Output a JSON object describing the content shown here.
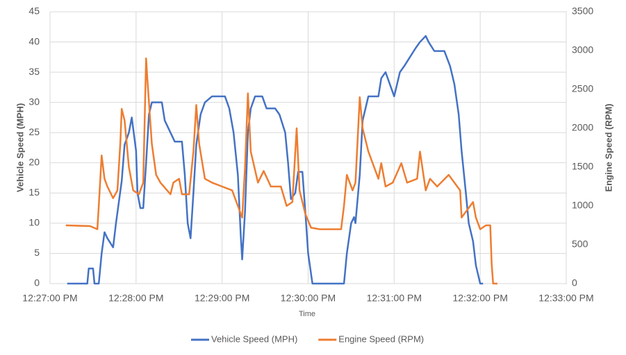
{
  "chart_data": {
    "type": "line",
    "x_label": "Time",
    "y_label": "Vehicle Speed (MPH)",
    "y2_label": "Engine Speed (RPM)",
    "xlim": [
      "12:27:00 PM",
      "12:33:00 PM"
    ],
    "xticks": [
      "12:27:00 PM",
      "12:28:00 PM",
      "12:29:00 PM",
      "12:30:00 PM",
      "12:31:00 PM",
      "12:32:00 PM",
      "12:33:00 PM"
    ],
    "ylim": [
      0,
      45
    ],
    "yticks": [
      0,
      5,
      10,
      15,
      20,
      25,
      30,
      35,
      40,
      45
    ],
    "y2lim": [
      0,
      3500
    ],
    "y2ticks": [
      0,
      500,
      1000,
      1500,
      2000,
      2500,
      3000,
      3500
    ],
    "grid": true,
    "legend": "bottom",
    "series": [
      {
        "name": "Vehicle Speed (MPH)",
        "color": "#4472c4",
        "x": [
          "12:27:12 PM",
          "12:27:26 PM",
          "12:27:27 PM",
          "12:27:30 PM",
          "12:27:31 PM",
          "12:27:34 PM",
          "12:27:36 PM",
          "12:27:38 PM",
          "12:27:40 PM",
          "12:27:44 PM",
          "12:27:46 PM",
          "12:27:50 PM",
          "12:27:52 PM",
          "12:27:55 PM",
          "12:27:57 PM",
          "12:28:00 PM",
          "12:28:01 PM",
          "12:28:03 PM",
          "12:28:05 PM",
          "12:28:07 PM",
          "12:28:09 PM",
          "12:28:11 PM",
          "12:28:18 PM",
          "12:28:20 PM",
          "12:28:24 PM",
          "12:28:27 PM",
          "12:28:32 PM",
          "12:28:34 PM",
          "12:28:36 PM",
          "12:28:38 PM",
          "12:28:40 PM",
          "12:28:42 PM",
          "12:28:45 PM",
          "12:28:48 PM",
          "12:28:53 PM",
          "12:29:02 PM",
          "12:29:05 PM",
          "12:29:08 PM",
          "12:29:11 PM",
          "12:29:13 PM",
          "12:29:14 PM",
          "12:29:16 PM",
          "12:29:18 PM",
          "12:29:20 PM",
          "12:29:23 PM",
          "12:29:28 PM",
          "12:29:31 PM",
          "12:29:37 PM",
          "12:29:40 PM",
          "12:29:44 PM",
          "12:29:46 PM",
          "12:29:48 PM",
          "12:29:51 PM",
          "12:29:53 PM",
          "12:29:56 PM",
          "12:29:58 PM",
          "12:30:00 PM",
          "12:30:03 PM",
          "12:30:25 PM",
          "12:30:27 PM",
          "12:30:30 PM",
          "12:30:32 PM",
          "12:30:33 PM",
          "12:30:36 PM",
          "12:30:38 PM",
          "12:30:42 PM",
          "12:30:49 PM",
          "12:30:51 PM",
          "12:30:54 PM",
          "12:30:57 PM",
          "12:31:00 PM",
          "12:31:04 PM",
          "12:31:07 PM",
          "12:31:11 PM",
          "12:31:15 PM",
          "12:31:18 PM",
          "12:31:22 PM",
          "12:31:24 PM",
          "12:31:28 PM",
          "12:31:35 PM",
          "12:31:39 PM",
          "12:31:42 PM",
          "12:31:45 PM",
          "12:31:47 PM",
          "12:31:50 PM",
          "12:31:52 PM",
          "12:31:55 PM",
          "12:31:57 PM",
          "12:32:00 PM",
          "12:32:02 PM"
        ],
        "values": [
          0,
          0,
          2.5,
          2.5,
          0,
          0,
          5,
          8.5,
          7.5,
          6,
          10,
          17,
          23,
          25,
          27.5,
          22,
          15,
          12.5,
          12.5,
          20,
          28,
          30,
          30,
          27,
          25,
          23.5,
          23.5,
          18,
          10,
          7.5,
          15,
          23,
          28,
          30,
          31,
          31,
          29,
          25,
          18,
          8,
          4,
          12,
          25,
          29,
          31,
          31,
          29,
          29,
          28,
          25,
          20,
          14,
          15,
          18.5,
          18.5,
          12,
          5,
          0,
          0,
          5,
          10,
          11,
          10,
          18,
          27,
          31,
          31,
          34,
          35,
          33,
          31,
          35,
          36,
          37.5,
          39,
          40,
          41,
          40,
          38.5,
          38.5,
          36,
          33,
          28,
          22,
          15,
          10,
          7,
          3,
          0,
          0
        ]
      },
      {
        "name": "Engine Speed (RPM)",
        "color": "#ed7d31",
        "axis": "y2",
        "x": [
          "12:27:11 PM",
          "12:27:28 PM",
          "12:27:33 PM",
          "12:27:34 PM",
          "12:27:36 PM",
          "12:27:38 PM",
          "12:27:40 PM",
          "12:27:44 PM",
          "12:27:47 PM",
          "12:27:49 PM",
          "12:27:50 PM",
          "12:27:52 PM",
          "12:27:55 PM",
          "12:27:58 PM",
          "12:28:02 PM",
          "12:28:05 PM",
          "12:28:07 PM",
          "12:28:08 PM",
          "12:28:11 PM",
          "12:28:14 PM",
          "12:28:17 PM",
          "12:28:24 PM",
          "12:28:26 PM",
          "12:28:30 PM",
          "12:28:32 PM",
          "12:28:37 PM",
          "12:28:40 PM",
          "12:28:42 PM",
          "12:28:44 PM",
          "12:28:48 PM",
          "12:28:53 PM",
          "12:29:00 PM",
          "12:29:07 PM",
          "12:29:11 PM",
          "12:29:14 PM",
          "12:29:16 PM",
          "12:29:18 PM",
          "12:29:20 PM",
          "12:29:25 PM",
          "12:29:29 PM",
          "12:29:34 PM",
          "12:29:41 PM",
          "12:29:45 PM",
          "12:29:49 PM",
          "12:29:52 PM",
          "12:29:54 PM",
          "12:29:58 PM",
          "12:30:02 PM",
          "12:30:08 PM",
          "12:30:23 PM",
          "12:30:25 PM",
          "12:30:27 PM",
          "12:30:31 PM",
          "12:30:33 PM",
          "12:30:36 PM",
          "12:30:38 PM",
          "12:30:42 PM",
          "12:30:49 PM",
          "12:30:51 PM",
          "12:30:54 PM",
          "12:30:59 PM",
          "12:31:05 PM",
          "12:31:09 PM",
          "12:31:16 PM",
          "12:31:18 PM",
          "12:31:22 PM",
          "12:31:25 PM",
          "12:31:30 PM",
          "12:31:38 PM",
          "12:31:42 PM",
          "12:31:46 PM",
          "12:31:47 PM",
          "12:31:51 PM",
          "12:31:55 PM",
          "12:31:57 PM",
          "12:32:00 PM",
          "12:32:04 PM",
          "12:32:07 PM",
          "12:32:08 PM",
          "12:32:09 PM",
          "12:32:12 PM"
        ],
        "values": [
          750,
          740,
          700,
          1000,
          1650,
          1350,
          1250,
          1100,
          1200,
          1800,
          2250,
          2100,
          1500,
          1200,
          1150,
          1300,
          2900,
          2600,
          1800,
          1400,
          1300,
          1150,
          1300,
          1350,
          1150,
          1150,
          1700,
          2300,
          1800,
          1350,
          1300,
          1250,
          1200,
          1000,
          850,
          1500,
          2450,
          1700,
          1300,
          1450,
          1250,
          1250,
          1000,
          1050,
          2000,
          1200,
          900,
          720,
          700,
          700,
          1000,
          1400,
          1200,
          1300,
          2400,
          2000,
          1700,
          1350,
          1550,
          1250,
          1300,
          1550,
          1300,
          1350,
          1700,
          1200,
          1350,
          1250,
          1400,
          1300,
          1200,
          850,
          950,
          1050,
          850,
          700,
          750,
          750,
          250,
          0,
          0
        ]
      }
    ]
  }
}
